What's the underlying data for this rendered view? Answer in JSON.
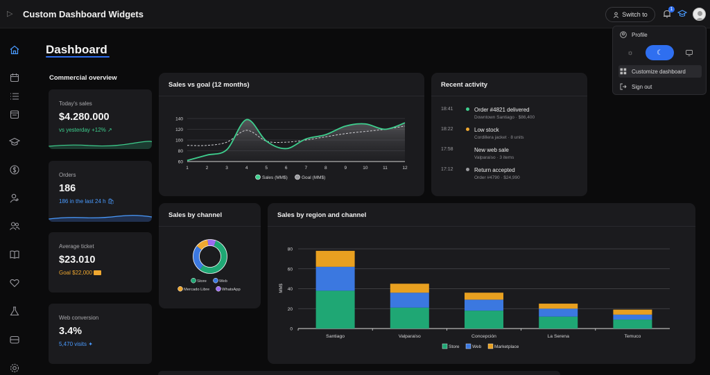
{
  "app": {
    "title": "Custom Dashboard Widgets"
  },
  "header": {
    "switch_label": "Switch to",
    "notification_count": "1",
    "icons": [
      "sidebar-toggle-icon",
      "user-icon",
      "bell-icon",
      "graduation-cap-icon",
      "avatar"
    ]
  },
  "sidebar": {
    "items": [
      {
        "name": "home-icon"
      },
      {
        "name": "calendar-icon"
      },
      {
        "name": "list-icon"
      },
      {
        "name": "calendar-check-icon"
      },
      {
        "name": "graduation-cap-icon"
      },
      {
        "name": "dollar-icon"
      },
      {
        "name": "user-plus-icon"
      },
      {
        "name": "users-icon"
      },
      {
        "name": "book-icon"
      },
      {
        "name": "heart-icon"
      },
      {
        "name": "flask-icon"
      },
      {
        "name": "archive-icon"
      },
      {
        "name": "settings-icon"
      }
    ]
  },
  "page": {
    "title": "Dashboard"
  },
  "overview": {
    "label": "Commercial overview",
    "kpis": [
      {
        "label": "Today's sales",
        "value": "$4.280.000",
        "sub": "vs yesterday +12%",
        "color": "#3ecf8e"
      },
      {
        "label": "Orders",
        "value": "186",
        "sub": "186 in the last 24 h",
        "color": "#4a9bff"
      },
      {
        "label": "Average ticket",
        "value": "$23.010",
        "sub": "Goal $22,000",
        "color": "#f0a830"
      },
      {
        "label": "Web conversion",
        "value": "3.4%",
        "sub": "5,470 visits",
        "color": "#4a9bff"
      }
    ]
  },
  "sales_goal": {
    "title": "Sales vs goal (12 months)"
  },
  "recent_activity": {
    "title": "Recent activity",
    "items": [
      {
        "time": "18:41",
        "title": "Order #4821 delivered",
        "sub": "Downtown Santiago · $86,400",
        "dot": "#3ecf8e"
      },
      {
        "time": "18:22",
        "title": "Low stock",
        "sub": "Cordillera jacket · 8 units",
        "dot": "#f0a830"
      },
      {
        "time": "17:58",
        "title": "New web sale",
        "sub": "Valparaíso · 3 items",
        "dot": ""
      },
      {
        "time": "17:12",
        "title": "Return accepted",
        "sub": "Order #4790 · $24,990",
        "dot": "#9a9a9e"
      }
    ]
  },
  "channel": {
    "title": "Sales by channel"
  },
  "region": {
    "title": "Sales by region and channel"
  },
  "dropdown": {
    "profile": "Profile",
    "customize": "Customize dashboard",
    "signout": "Sign out",
    "theme_selected": "dark"
  },
  "colors": {
    "accent": "#2f6ff0",
    "store": "#1fa774",
    "web": "#3b78e0",
    "marketplace": "#e8a020",
    "mercado": "#f0a830",
    "whatsapp": "#9b6cf0"
  },
  "chart_data": [
    {
      "type": "line",
      "title": "Sales vs goal (12 months)",
      "x": [
        1,
        2,
        3,
        4,
        5,
        6,
        7,
        8,
        9,
        10,
        11,
        12
      ],
      "series": [
        {
          "name": "Sales (MM$)",
          "values": [
            62,
            72,
            82,
            138,
            98,
            84,
            102,
            110,
            126,
            130,
            120,
            132
          ]
        },
        {
          "name": "Goal (MM$)",
          "values": [
            90,
            90,
            96,
            118,
            98,
            96,
            100,
            106,
            112,
            116,
            120,
            126
          ]
        }
      ],
      "ylim": [
        60,
        140
      ],
      "yticks": [
        60,
        80,
        100,
        120,
        140
      ],
      "xticks": [
        "1",
        "2",
        "3",
        "4",
        "5",
        "6",
        "7",
        "8",
        "9",
        "10",
        "11",
        "12"
      ],
      "legend": "bottom",
      "grid": true
    },
    {
      "type": "pie",
      "title": "Sales by channel",
      "categories": [
        "Store",
        "Web",
        "Mercado Libre",
        "WhatsApp"
      ],
      "values": [
        55,
        25,
        12,
        8
      ],
      "legend": "bottom"
    },
    {
      "type": "bar",
      "title": "Sales by region and channel",
      "categories": [
        "Santiago",
        "Valparaíso",
        "Concepción",
        "La Serena",
        "Temuco"
      ],
      "series": [
        {
          "name": "Store",
          "values": [
            38,
            21,
            18,
            12,
            9
          ]
        },
        {
          "name": "Web",
          "values": [
            24,
            15,
            11,
            8,
            5
          ]
        },
        {
          "name": "Marketplace",
          "values": [
            16,
            9,
            7,
            5,
            5
          ]
        }
      ],
      "ylabel": "MM$",
      "ylim": [
        0,
        80
      ],
      "yticks": [
        0,
        20,
        40,
        60,
        80
      ],
      "stacked": true,
      "legend": "bottom",
      "grid": true
    }
  ]
}
